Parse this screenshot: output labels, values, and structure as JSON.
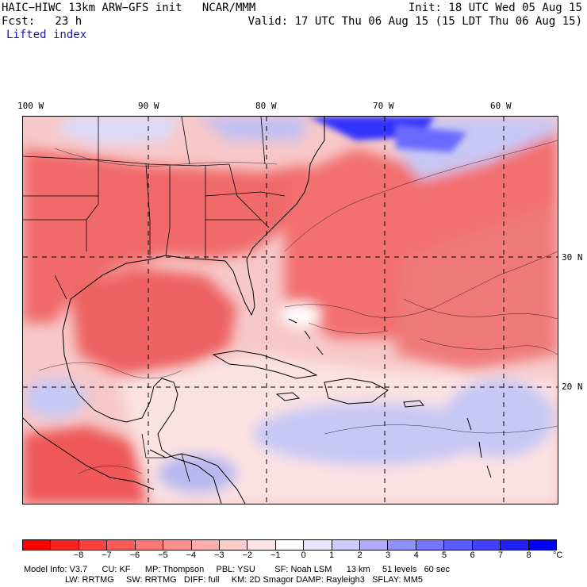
{
  "header": {
    "model_line": "HAIC−HIWC 13km ARW−GFS init   NCAR/MMM",
    "init_line": "Init: 18 UTC Wed 05 Aug 15",
    "fcst_line": "Fcst:   23 h",
    "valid_line": "Valid: 17 UTC Thu 06 Aug 15 (15 LDT Thu 06 Aug 15)",
    "field_name": "Lifted index"
  },
  "map": {
    "longitude_labels": [
      "100 W",
      "90 W",
      "80 W",
      "70 W",
      "60 W"
    ],
    "latitude_labels": [
      "30 N",
      "20 N"
    ]
  },
  "colorbar": {
    "colors": [
      "#ff0000",
      "#ff2020",
      "#ff4040",
      "#ff5a5a",
      "#ff7474",
      "#ff9090",
      "#ffadad",
      "#ffcccc",
      "#ffe6e6",
      "#ffffff",
      "#e6e6ff",
      "#ccccff",
      "#adadff",
      "#9090ff",
      "#7474ff",
      "#5a5aff",
      "#4040ff",
      "#2020ff",
      "#0000ff"
    ],
    "ticks": [
      "−8",
      "−7",
      "−6",
      "−5",
      "−4",
      "−3",
      "−2",
      "−1",
      "0",
      "1",
      "2",
      "3",
      "4",
      "5",
      "6",
      "7",
      "8"
    ],
    "unit": "°C"
  },
  "footer": {
    "line1": "Model Info: V3.7      CU: KF      MP: Thompson     PBL: YSU        SF: Noah LSM      13 km     51 levels   60 sec",
    "line2": "                 LW: RRTMG     SW: RRTMG   DIFF: full     KM: 2D Smagor DAMP: Rayleigh3   SFLAY: MM5"
  }
}
